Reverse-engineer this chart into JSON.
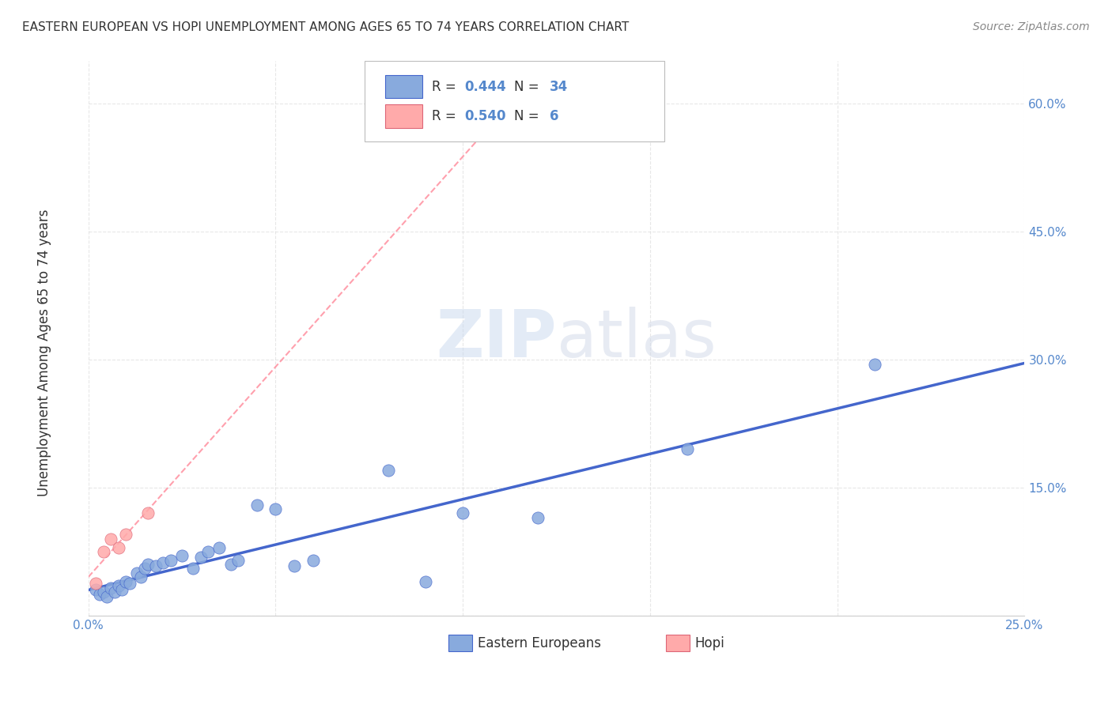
{
  "title": "EASTERN EUROPEAN VS HOPI UNEMPLOYMENT AMONG AGES 65 TO 74 YEARS CORRELATION CHART",
  "source": "Source: ZipAtlas.com",
  "xlabel": "",
  "ylabel": "Unemployment Among Ages 65 to 74 years",
  "xlim": [
    0.0,
    0.25
  ],
  "ylim": [
    0.0,
    0.65
  ],
  "xticks": [
    0.0,
    0.05,
    0.1,
    0.15,
    0.2,
    0.25
  ],
  "yticks": [
    0.0,
    0.15,
    0.3,
    0.45,
    0.6
  ],
  "ytick_labels": [
    "",
    "15.0%",
    "30.0%",
    "45.0%",
    "60.0%"
  ],
  "xtick_labels": [
    "0.0%",
    "",
    "",
    "",
    "",
    "25.0%"
  ],
  "eastern_europeans_x": [
    0.002,
    0.003,
    0.004,
    0.005,
    0.006,
    0.007,
    0.008,
    0.009,
    0.01,
    0.011,
    0.013,
    0.014,
    0.015,
    0.016,
    0.018,
    0.02,
    0.022,
    0.025,
    0.028,
    0.03,
    0.032,
    0.035,
    0.038,
    0.04,
    0.045,
    0.05,
    0.055,
    0.06,
    0.08,
    0.09,
    0.1,
    0.12,
    0.16,
    0.21
  ],
  "eastern_europeans_y": [
    0.03,
    0.025,
    0.028,
    0.022,
    0.032,
    0.028,
    0.035,
    0.03,
    0.04,
    0.038,
    0.05,
    0.045,
    0.055,
    0.06,
    0.058,
    0.062,
    0.065,
    0.07,
    0.055,
    0.068,
    0.075,
    0.08,
    0.06,
    0.065,
    0.13,
    0.125,
    0.058,
    0.065,
    0.17,
    0.04,
    0.12,
    0.115,
    0.195,
    0.295
  ],
  "hopi_x": [
    0.002,
    0.004,
    0.006,
    0.008,
    0.01,
    0.016
  ],
  "hopi_y": [
    0.038,
    0.075,
    0.09,
    0.08,
    0.095,
    0.12
  ],
  "r_eastern": 0.444,
  "n_eastern": 34,
  "r_hopi": 0.54,
  "n_hopi": 6,
  "color_eastern": "#88AADD",
  "color_hopi": "#FFAAAA",
  "line_color_eastern": "#4466CC",
  "line_color_hopi": "#FF8899",
  "watermark_zip": "ZIP",
  "watermark_atlas": "atlas",
  "background_color": "#FFFFFF",
  "grid_color": "#DDDDDD"
}
